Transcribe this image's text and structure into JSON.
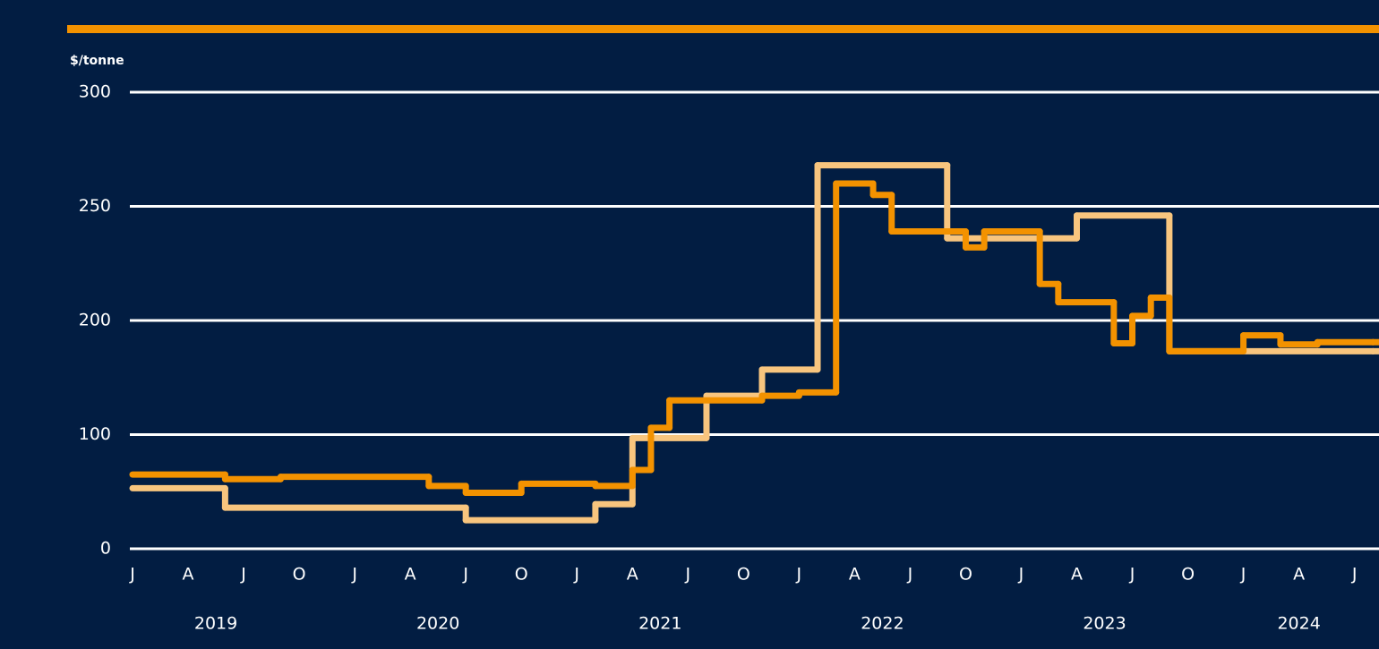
{
  "chart_data": {
    "type": "step",
    "y_axis_label": "$/tonne",
    "ylim": [
      0,
      300
    ],
    "yticks": [
      0,
      100,
      200,
      250,
      300
    ],
    "grid": true,
    "xlim": [
      "2019-01",
      "2024-09"
    ],
    "xticks": [
      {
        "value": "2019-01",
        "label": "J"
      },
      {
        "value": "2019-04",
        "label": "A"
      },
      {
        "value": "2019-07",
        "label": "J"
      },
      {
        "value": "2019-10",
        "label": "O"
      },
      {
        "value": "2020-01",
        "label": "J"
      },
      {
        "value": "2020-04",
        "label": "A"
      },
      {
        "value": "2020-07",
        "label": "J"
      },
      {
        "value": "2020-10",
        "label": "O"
      },
      {
        "value": "2021-01",
        "label": "J"
      },
      {
        "value": "2021-04",
        "label": "A"
      },
      {
        "value": "2021-07",
        "label": "J"
      },
      {
        "value": "2021-10",
        "label": "O"
      },
      {
        "value": "2022-01",
        "label": "J"
      },
      {
        "value": "2022-04",
        "label": "A"
      },
      {
        "value": "2022-07",
        "label": "J"
      },
      {
        "value": "2022-10",
        "label": "O"
      },
      {
        "value": "2023-01",
        "label": "J"
      },
      {
        "value": "2023-04",
        "label": "A"
      },
      {
        "value": "2023-07",
        "label": "J"
      },
      {
        "value": "2023-10",
        "label": "O"
      },
      {
        "value": "2024-01",
        "label": "J"
      },
      {
        "value": "2024-04",
        "label": "A"
      },
      {
        "value": "2024-07",
        "label": "J"
      }
    ],
    "years": [
      "2019",
      "2020",
      "2021",
      "2022",
      "2023",
      "2024"
    ],
    "series": [
      {
        "color": "#f8c57e",
        "x": [
          "2019-01",
          "2019-06",
          "2020-07",
          "2021-02",
          "2021-04",
          "2021-08",
          "2021-11",
          "2022-02",
          "2022-09",
          "2023-04",
          "2023-09",
          "2024-08"
        ],
        "values": [
          53,
          36,
          25,
          39,
          97,
          134,
          157,
          268,
          236,
          246,
          173,
          173
        ]
      },
      {
        "color": "#f39200",
        "x": [
          "2019-01",
          "2019-06",
          "2019-09",
          "2020-05",
          "2020-07",
          "2020-10",
          "2021-02",
          "2021-04",
          "2021-05",
          "2021-06",
          "2021-11",
          "2022-01",
          "2022-03",
          "2022-05",
          "2022-06",
          "2022-10",
          "2022-11",
          "2023-02",
          "2023-03",
          "2023-06",
          "2023-07",
          "2023-08",
          "2023-09",
          "2024-01",
          "2024-03",
          "2024-05",
          "2024-08"
        ],
        "values": [
          65,
          61,
          63,
          55,
          49,
          57,
          55,
          69,
          106,
          130,
          134,
          137,
          260,
          255,
          239,
          232,
          239,
          216,
          208,
          180,
          202,
          210,
          173,
          187,
          179,
          181,
          181
        ]
      }
    ]
  }
}
